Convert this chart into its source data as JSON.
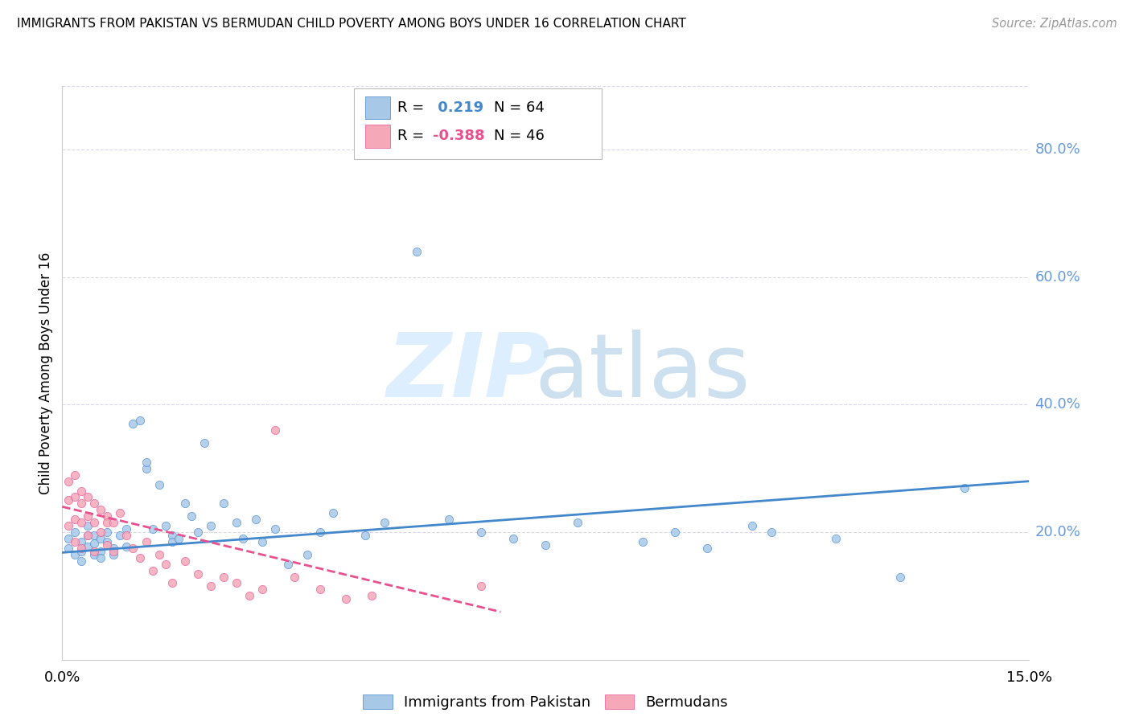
{
  "title": "IMMIGRANTS FROM PAKISTAN VS BERMUDAN CHILD POVERTY AMONG BOYS UNDER 16 CORRELATION CHART",
  "source": "Source: ZipAtlas.com",
  "ylabel": "Child Poverty Among Boys Under 16",
  "xlim": [
    0.0,
    0.15
  ],
  "ylim": [
    0.0,
    0.9
  ],
  "xtick_positions": [
    0.0,
    0.15
  ],
  "xtick_labels": [
    "0.0%",
    "15.0%"
  ],
  "ytick_values": [
    0.2,
    0.4,
    0.6,
    0.8
  ],
  "ytick_labels": [
    "20.0%",
    "40.0%",
    "60.0%",
    "80.0%"
  ],
  "legend_blue_r": " 0.219",
  "legend_blue_n": "64",
  "legend_pink_r": "-0.388",
  "legend_pink_n": "46",
  "blue_color": "#a8c8e8",
  "pink_color": "#f4a8b8",
  "trendline_blue_color": "#4488cc",
  "trendline_pink_color": "#e85090",
  "background_color": "#ffffff",
  "grid_color": "#d8d8e8",
  "ytick_color": "#6699dd",
  "blue_scatter": {
    "x": [
      0.001,
      0.001,
      0.002,
      0.002,
      0.003,
      0.003,
      0.003,
      0.004,
      0.004,
      0.004,
      0.005,
      0.005,
      0.005,
      0.006,
      0.006,
      0.006,
      0.007,
      0.007,
      0.008,
      0.008,
      0.009,
      0.01,
      0.01,
      0.011,
      0.012,
      0.013,
      0.013,
      0.014,
      0.015,
      0.016,
      0.017,
      0.017,
      0.018,
      0.019,
      0.02,
      0.021,
      0.022,
      0.023,
      0.025,
      0.027,
      0.028,
      0.03,
      0.031,
      0.033,
      0.035,
      0.038,
      0.04,
      0.042,
      0.047,
      0.05,
      0.055,
      0.06,
      0.065,
      0.07,
      0.075,
      0.08,
      0.09,
      0.095,
      0.1,
      0.107,
      0.11,
      0.12,
      0.13,
      0.14
    ],
    "y": [
      0.175,
      0.19,
      0.165,
      0.2,
      0.155,
      0.185,
      0.17,
      0.195,
      0.178,
      0.21,
      0.165,
      0.182,
      0.195,
      0.17,
      0.19,
      0.16,
      0.185,
      0.2,
      0.175,
      0.165,
      0.195,
      0.178,
      0.205,
      0.37,
      0.375,
      0.3,
      0.31,
      0.205,
      0.275,
      0.21,
      0.195,
      0.185,
      0.19,
      0.245,
      0.225,
      0.2,
      0.34,
      0.21,
      0.245,
      0.215,
      0.19,
      0.22,
      0.185,
      0.205,
      0.15,
      0.165,
      0.2,
      0.23,
      0.195,
      0.215,
      0.64,
      0.22,
      0.2,
      0.19,
      0.18,
      0.215,
      0.185,
      0.2,
      0.175,
      0.21,
      0.2,
      0.19,
      0.13,
      0.27
    ]
  },
  "pink_scatter": {
    "x": [
      0.001,
      0.001,
      0.001,
      0.002,
      0.002,
      0.002,
      0.002,
      0.003,
      0.003,
      0.003,
      0.003,
      0.004,
      0.004,
      0.004,
      0.005,
      0.005,
      0.005,
      0.006,
      0.006,
      0.007,
      0.007,
      0.007,
      0.008,
      0.008,
      0.009,
      0.01,
      0.011,
      0.012,
      0.013,
      0.014,
      0.015,
      0.016,
      0.017,
      0.019,
      0.021,
      0.023,
      0.025,
      0.027,
      0.029,
      0.031,
      0.033,
      0.036,
      0.04,
      0.044,
      0.048,
      0.065
    ],
    "y": [
      0.28,
      0.25,
      0.21,
      0.29,
      0.255,
      0.22,
      0.185,
      0.265,
      0.245,
      0.215,
      0.175,
      0.255,
      0.225,
      0.195,
      0.245,
      0.215,
      0.17,
      0.235,
      0.2,
      0.225,
      0.215,
      0.18,
      0.215,
      0.17,
      0.23,
      0.195,
      0.175,
      0.16,
      0.185,
      0.14,
      0.165,
      0.15,
      0.12,
      0.155,
      0.135,
      0.115,
      0.13,
      0.12,
      0.1,
      0.11,
      0.36,
      0.13,
      0.11,
      0.095,
      0.1,
      0.115
    ]
  },
  "blue_trend_x": [
    0.0,
    0.15
  ],
  "blue_trend_y": [
    0.168,
    0.28
  ],
  "pink_trend_x": [
    0.0,
    0.068
  ],
  "pink_trend_y": [
    0.24,
    0.075
  ]
}
